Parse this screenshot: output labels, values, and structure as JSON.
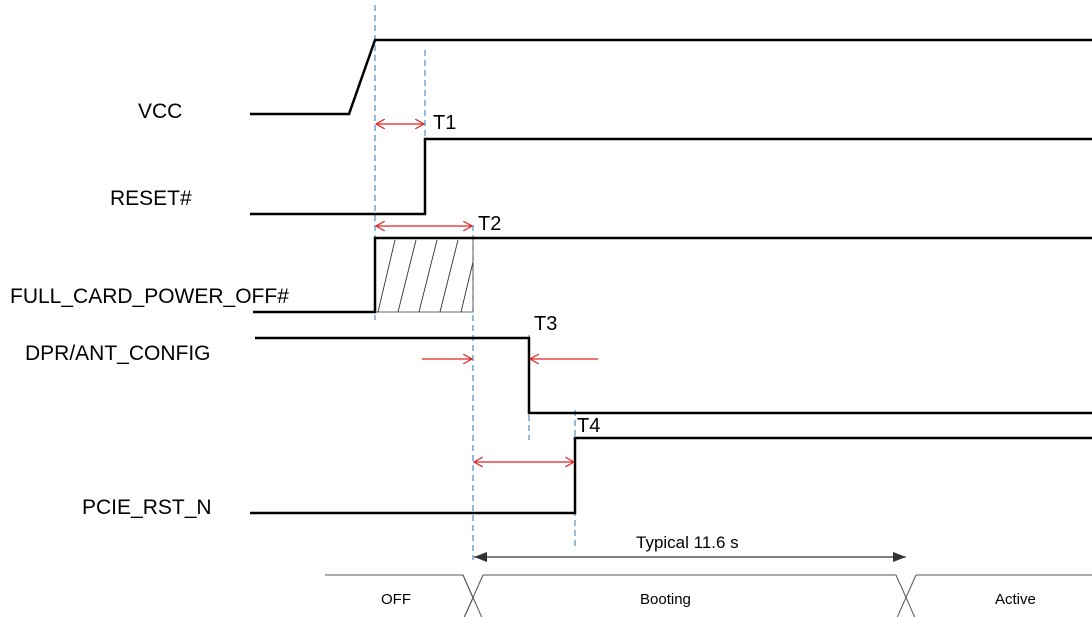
{
  "signals": {
    "vcc": "VCC",
    "reset": "RESET#",
    "full_card_power_off": "FULL_CARD_POWER_OFF#",
    "dpr_ant_config": "DPR/ANT_CONFIG",
    "pcie_rst_n": "PCIE_RST_N"
  },
  "timing_markers": {
    "t1": "T1",
    "t2": "T2",
    "t3": "T3",
    "t4": "T4"
  },
  "boot_span": "Typical 11.6 s",
  "states": {
    "off": "OFF",
    "booting": "Booting",
    "active": "Active"
  },
  "colors": {
    "guide_lines": "#2e75b6",
    "timing_arrows": "#e02020",
    "waveforms": "#000000"
  }
}
